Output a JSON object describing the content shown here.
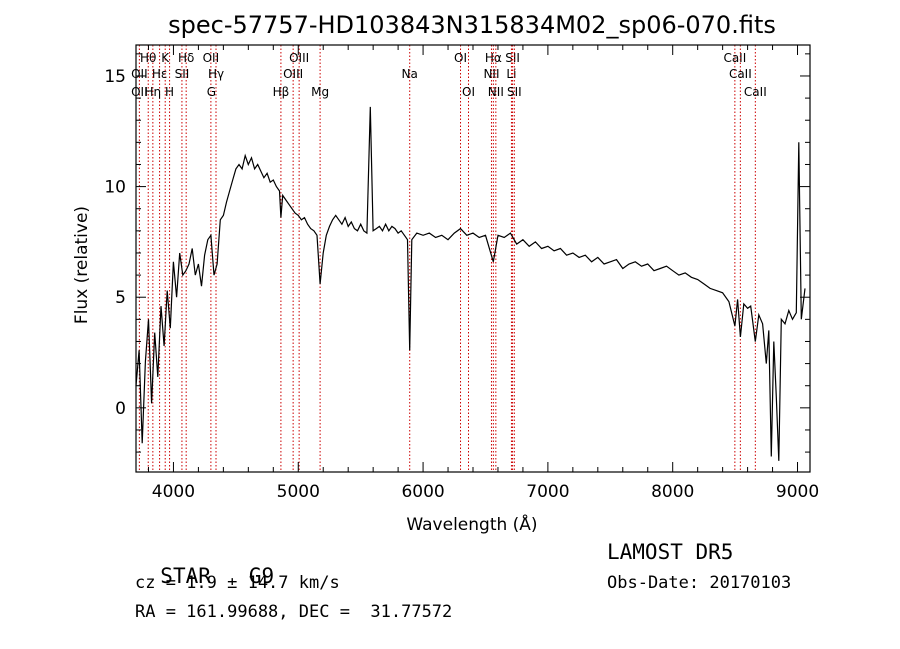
{
  "chart_data": {
    "type": "line",
    "title": "spec-57757-HD103843N315834M02_sp06-070.fits",
    "xlabel": "Wavelength (Å)",
    "ylabel": "Flux (relative)",
    "xlim": [
      3700,
      9100
    ],
    "ylim": [
      -2.9,
      16.4
    ],
    "xticks": [
      4000,
      5000,
      6000,
      7000,
      8000,
      9000
    ],
    "yticks": [
      0,
      5,
      10,
      15
    ],
    "grid": false,
    "series": [
      {
        "values": [
          [
            3700,
            1.0
          ],
          [
            3725,
            2.6
          ],
          [
            3750,
            -1.6
          ],
          [
            3775,
            2.1
          ],
          [
            3800,
            4.0
          ],
          [
            3825,
            0.2
          ],
          [
            3850,
            3.4
          ],
          [
            3875,
            1.4
          ],
          [
            3900,
            4.6
          ],
          [
            3925,
            2.8
          ],
          [
            3950,
            5.3
          ],
          [
            3975,
            3.6
          ],
          [
            4000,
            6.6
          ],
          [
            4025,
            5.0
          ],
          [
            4050,
            7.0
          ],
          [
            4075,
            6.0
          ],
          [
            4100,
            6.2
          ],
          [
            4125,
            6.5
          ],
          [
            4150,
            7.2
          ],
          [
            4175,
            6.0
          ],
          [
            4200,
            6.5
          ],
          [
            4225,
            5.5
          ],
          [
            4250,
            6.9
          ],
          [
            4275,
            7.6
          ],
          [
            4300,
            7.8
          ],
          [
            4325,
            6.0
          ],
          [
            4350,
            6.5
          ],
          [
            4375,
            8.5
          ],
          [
            4400,
            8.7
          ],
          [
            4425,
            9.3
          ],
          [
            4450,
            9.8
          ],
          [
            4475,
            10.3
          ],
          [
            4500,
            10.8
          ],
          [
            4525,
            11.0
          ],
          [
            4550,
            10.8
          ],
          [
            4575,
            11.4
          ],
          [
            4600,
            11.0
          ],
          [
            4625,
            11.3
          ],
          [
            4650,
            10.8
          ],
          [
            4675,
            11.0
          ],
          [
            4700,
            10.7
          ],
          [
            4725,
            10.4
          ],
          [
            4750,
            10.6
          ],
          [
            4775,
            10.2
          ],
          [
            4800,
            10.3
          ],
          [
            4825,
            10.0
          ],
          [
            4850,
            9.8
          ],
          [
            4861,
            8.6
          ],
          [
            4875,
            9.6
          ],
          [
            4900,
            9.4
          ],
          [
            4925,
            9.2
          ],
          [
            4950,
            9.0
          ],
          [
            4975,
            8.8
          ],
          [
            5000,
            8.7
          ],
          [
            5025,
            8.5
          ],
          [
            5050,
            8.6
          ],
          [
            5075,
            8.3
          ],
          [
            5100,
            8.1
          ],
          [
            5125,
            8.0
          ],
          [
            5150,
            7.8
          ],
          [
            5175,
            5.6
          ],
          [
            5200,
            7.0
          ],
          [
            5225,
            7.8
          ],
          [
            5250,
            8.2
          ],
          [
            5275,
            8.5
          ],
          [
            5300,
            8.7
          ],
          [
            5325,
            8.5
          ],
          [
            5350,
            8.3
          ],
          [
            5375,
            8.6
          ],
          [
            5400,
            8.2
          ],
          [
            5425,
            8.4
          ],
          [
            5450,
            8.1
          ],
          [
            5475,
            8.0
          ],
          [
            5500,
            8.3
          ],
          [
            5525,
            8.0
          ],
          [
            5550,
            7.9
          ],
          [
            5577,
            13.6
          ],
          [
            5600,
            8.0
          ],
          [
            5625,
            8.1
          ],
          [
            5650,
            8.2
          ],
          [
            5675,
            8.0
          ],
          [
            5700,
            8.3
          ],
          [
            5725,
            8.0
          ],
          [
            5750,
            8.2
          ],
          [
            5775,
            8.1
          ],
          [
            5800,
            7.9
          ],
          [
            5825,
            8.0
          ],
          [
            5850,
            7.8
          ],
          [
            5875,
            7.6
          ],
          [
            5893,
            2.6
          ],
          [
            5910,
            7.6
          ],
          [
            5950,
            7.9
          ],
          [
            6000,
            7.8
          ],
          [
            6050,
            7.9
          ],
          [
            6100,
            7.7
          ],
          [
            6150,
            7.8
          ],
          [
            6200,
            7.6
          ],
          [
            6250,
            7.9
          ],
          [
            6300,
            8.1
          ],
          [
            6350,
            7.8
          ],
          [
            6400,
            7.9
          ],
          [
            6450,
            7.7
          ],
          [
            6500,
            7.8
          ],
          [
            6563,
            6.6
          ],
          [
            6600,
            7.8
          ],
          [
            6650,
            7.7
          ],
          [
            6700,
            7.9
          ],
          [
            6750,
            7.4
          ],
          [
            6800,
            7.6
          ],
          [
            6850,
            7.3
          ],
          [
            6900,
            7.5
          ],
          [
            6950,
            7.2
          ],
          [
            7000,
            7.3
          ],
          [
            7050,
            7.1
          ],
          [
            7100,
            7.2
          ],
          [
            7150,
            6.9
          ],
          [
            7200,
            7.0
          ],
          [
            7250,
            6.8
          ],
          [
            7300,
            6.9
          ],
          [
            7350,
            6.6
          ],
          [
            7400,
            6.8
          ],
          [
            7450,
            6.5
          ],
          [
            7500,
            6.6
          ],
          [
            7550,
            6.7
          ],
          [
            7600,
            6.3
          ],
          [
            7650,
            6.5
          ],
          [
            7700,
            6.6
          ],
          [
            7750,
            6.4
          ],
          [
            7800,
            6.5
          ],
          [
            7850,
            6.2
          ],
          [
            7900,
            6.3
          ],
          [
            7950,
            6.4
          ],
          [
            8000,
            6.2
          ],
          [
            8050,
            6.0
          ],
          [
            8100,
            6.1
          ],
          [
            8150,
            5.9
          ],
          [
            8200,
            5.8
          ],
          [
            8250,
            5.6
          ],
          [
            8300,
            5.4
          ],
          [
            8350,
            5.3
          ],
          [
            8400,
            5.2
          ],
          [
            8450,
            4.8
          ],
          [
            8498,
            3.7
          ],
          [
            8520,
            4.9
          ],
          [
            8542,
            3.2
          ],
          [
            8570,
            4.7
          ],
          [
            8600,
            4.5
          ],
          [
            8625,
            4.6
          ],
          [
            8662,
            3.0
          ],
          [
            8690,
            4.2
          ],
          [
            8720,
            3.8
          ],
          [
            8750,
            2.0
          ],
          [
            8770,
            3.5
          ],
          [
            8790,
            -2.2
          ],
          [
            8810,
            3.0
          ],
          [
            8830,
            0.5
          ],
          [
            8850,
            -2.4
          ],
          [
            8870,
            4.0
          ],
          [
            8900,
            3.8
          ],
          [
            8930,
            4.4
          ],
          [
            8960,
            4.0
          ],
          [
            8990,
            4.3
          ],
          [
            9010,
            12.0
          ],
          [
            9030,
            4.0
          ],
          [
            9060,
            5.4
          ]
        ]
      }
    ],
    "lines": [
      {
        "label": "Hθ",
        "x": 3798,
        "row": 1
      },
      {
        "label": "K",
        "x": 3934,
        "row": 1
      },
      {
        "label": "Hδ",
        "x": 4102,
        "row": 1
      },
      {
        "label": "OII",
        "x": 4300,
        "row": 1
      },
      {
        "label": "OIII",
        "x": 5007,
        "row": 1
      },
      {
        "label": "OI",
        "x": 6300,
        "row": 1
      },
      {
        "label": "Hα",
        "x": 6563,
        "row": 1
      },
      {
        "label": "SII",
        "x": 6717,
        "row": 1
      },
      {
        "label": "CaII",
        "x": 8498,
        "row": 1
      },
      {
        "label": "OII",
        "x": 3727,
        "row": 2
      },
      {
        "label": "Hε",
        "x": 3889,
        "row": 2
      },
      {
        "label": "SII",
        "x": 4068,
        "row": 2
      },
      {
        "label": "Hγ",
        "x": 4341,
        "row": 2
      },
      {
        "label": "OIII",
        "x": 4959,
        "row": 2
      },
      {
        "label": "Na",
        "x": 5893,
        "row": 2
      },
      {
        "label": "NII",
        "x": 6548,
        "row": 2
      },
      {
        "label": "Li",
        "x": 6708,
        "row": 2
      },
      {
        "label": "CaII",
        "x": 8542,
        "row": 2
      },
      {
        "label": "OII",
        "x": 3727,
        "row": 3
      },
      {
        "label": "Hη",
        "x": 3835,
        "row": 3
      },
      {
        "label": "H",
        "x": 3969,
        "row": 3
      },
      {
        "label": "G",
        "x": 4304,
        "row": 3
      },
      {
        "label": "Hβ",
        "x": 4861,
        "row": 3
      },
      {
        "label": "Mg",
        "x": 5175,
        "row": 3
      },
      {
        "label": "OI",
        "x": 6364,
        "row": 3
      },
      {
        "label": "NII",
        "x": 6583,
        "row": 3
      },
      {
        "label": "SII",
        "x": 6731,
        "row": 3
      },
      {
        "label": "CaII",
        "x": 8662,
        "row": 3
      }
    ],
    "line_color": "#cc0000",
    "spectrum_color": "#000000"
  },
  "info": {
    "class_label": "STAR",
    "subclass": "G9",
    "redshift": "cz = 1.9 ± 14.7 km/s",
    "coords": "RA = 161.99688, DEC =  31.77572",
    "survey": "LAMOST DR5",
    "obs_date": "Obs-Date: 20170103"
  }
}
